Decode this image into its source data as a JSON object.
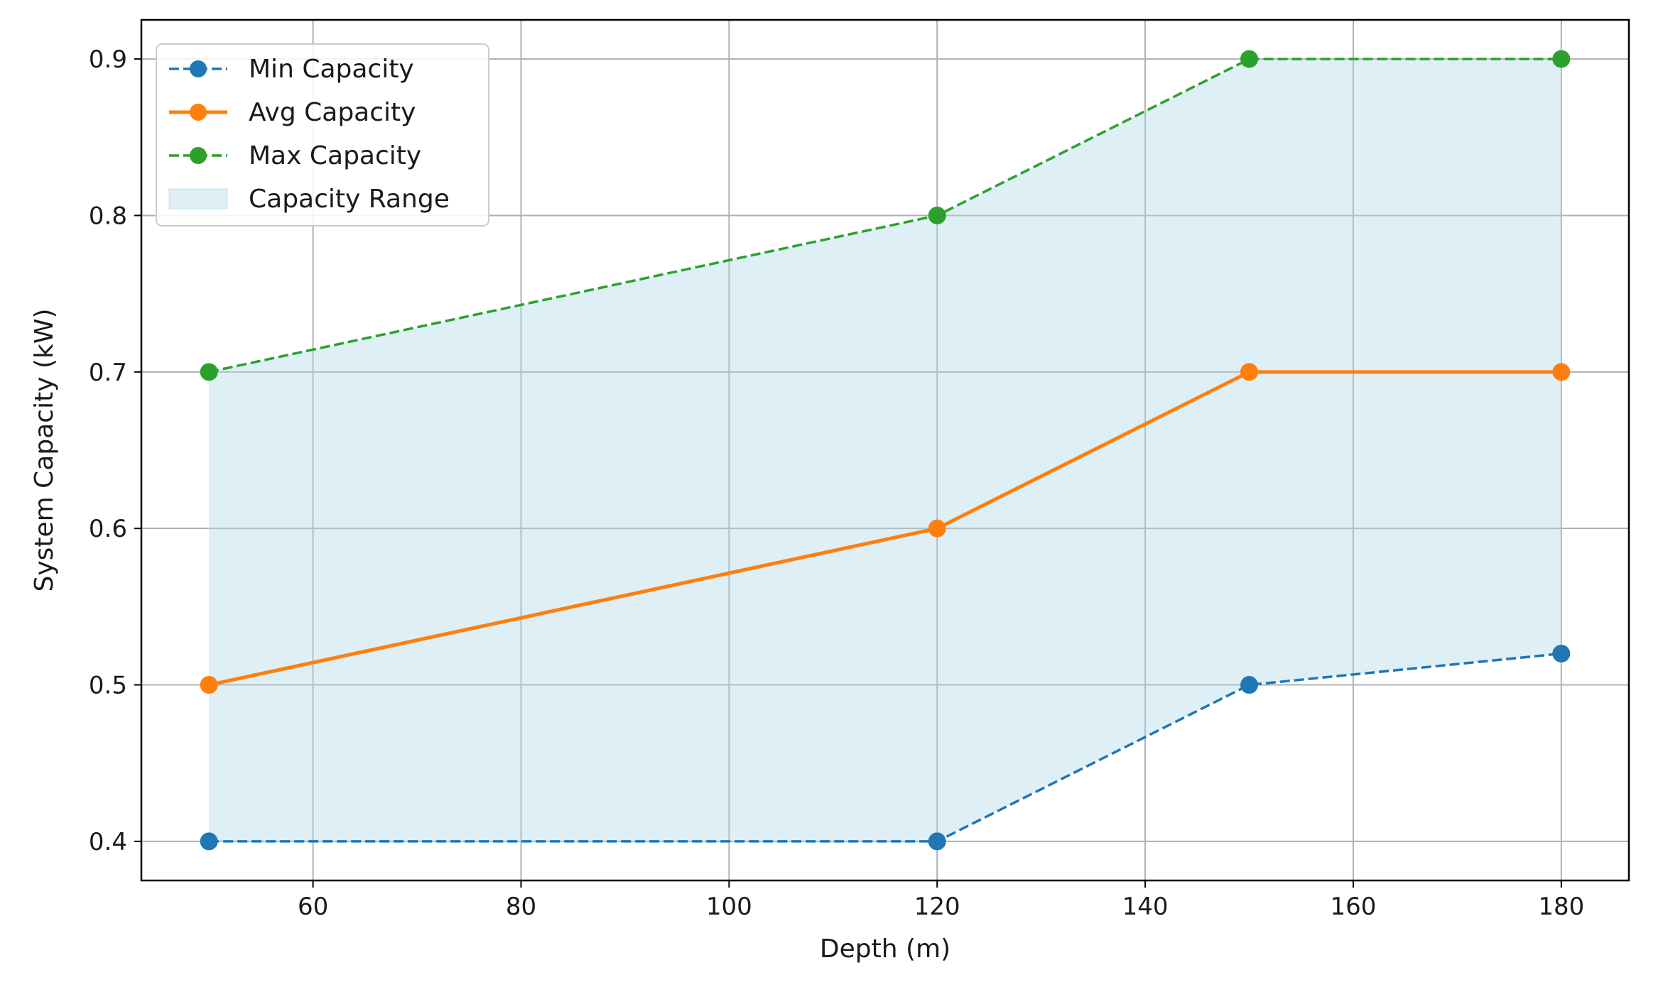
{
  "chart_data": {
    "type": "line",
    "title": "",
    "xlabel": "Depth (m)",
    "ylabel": "System Capacity (kW)",
    "x": [
      50,
      120,
      150,
      180
    ],
    "xlim": [
      43.5,
      186.5
    ],
    "ylim": [
      0.375,
      0.925
    ],
    "xticks": [
      60,
      80,
      100,
      120,
      140,
      160,
      180
    ],
    "yticks": [
      0.4,
      0.5,
      0.6,
      0.7,
      0.8,
      0.9
    ],
    "xtick_labels": [
      "60",
      "80",
      "100",
      "120",
      "140",
      "160",
      "180"
    ],
    "ytick_labels": [
      "0.4",
      "0.5",
      "0.6",
      "0.7",
      "0.8",
      "0.9"
    ],
    "grid": true,
    "legend_position": "top-left",
    "series": [
      {
        "name": "Min Capacity",
        "values": [
          0.4,
          0.4,
          0.5,
          0.52
        ],
        "color": "#1f77b4",
        "style": "dashed",
        "marker": "circle"
      },
      {
        "name": "Avg Capacity",
        "values": [
          0.5,
          0.6,
          0.7,
          0.7
        ],
        "color": "#ff7f0e",
        "style": "solid",
        "marker": "circle"
      },
      {
        "name": "Max Capacity",
        "values": [
          0.7,
          0.8,
          0.9,
          0.9
        ],
        "color": "#2ca02c",
        "style": "dashed",
        "marker": "circle"
      }
    ],
    "fill_between": {
      "name": "Capacity Range",
      "lower_series": "Min Capacity",
      "upper_series": "Max Capacity",
      "color": "#add8e6",
      "opacity": 0.4
    }
  }
}
